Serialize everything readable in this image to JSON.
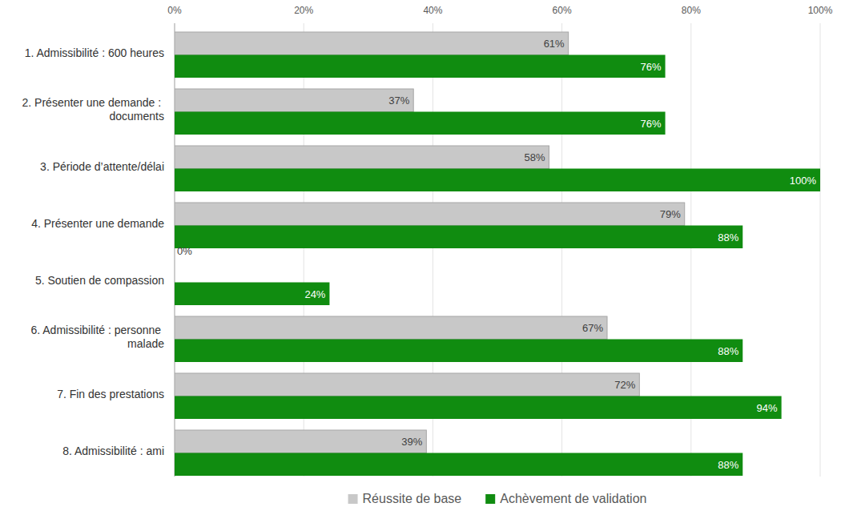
{
  "chart_data": {
    "type": "bar",
    "orientation": "horizontal",
    "categories": [
      "1. Admissibilité : 600 heures",
      "2. Présenter une demande : documents",
      "3. Période d’attente/délai",
      "4. Présenter une demande",
      "5. Soutien de compassion",
      "6. Admissibilité : personne malade",
      "7. Fin des prestations",
      "8. Admissibilité : ami"
    ],
    "series": [
      {
        "name": "Réussite de base",
        "color": "#c8c8c8",
        "values": [
          61,
          37,
          58,
          79,
          0,
          67,
          72,
          39
        ],
        "value_labels": [
          "61%",
          "37%",
          "58%",
          "79%",
          "0%",
          "67%",
          "72%",
          "39%"
        ]
      },
      {
        "name": "Achèvement de validation",
        "color": "#108c10",
        "values": [
          76,
          76,
          100,
          88,
          24,
          88,
          94,
          88
        ],
        "value_labels": [
          "76%",
          "76%",
          "100%",
          "88%",
          "24%",
          "88%",
          "94%",
          "88%"
        ]
      }
    ],
    "xlim": [
      0,
      100
    ],
    "xticks": [
      {
        "value": 0,
        "label": "0%"
      },
      {
        "value": 20,
        "label": "20%"
      },
      {
        "value": 40,
        "label": "40%"
      },
      {
        "value": 60,
        "label": "60%"
      },
      {
        "value": 80,
        "label": "80%"
      },
      {
        "value": 100,
        "label": "100%"
      }
    ],
    "grid": true,
    "legend": "bottom",
    "data_labels": true
  }
}
